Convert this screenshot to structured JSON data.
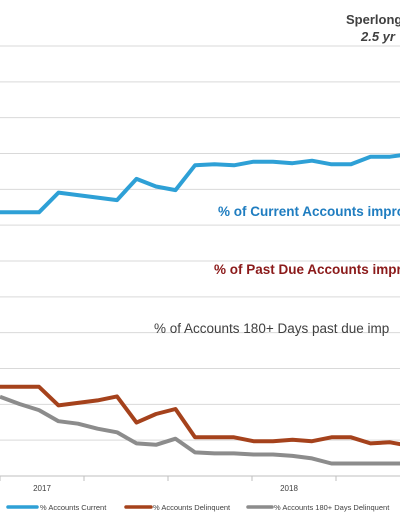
{
  "chart_data": {
    "type": "line",
    "title": "Sperlong",
    "subtitle": "2.5 yr",
    "ylim": [
      0,
      12
    ],
    "grid": true,
    "x_ticks": [
      "2017",
      "2018"
    ],
    "annotations": [
      {
        "text": "% of Current Accounts impro",
        "color": "#1F7DC0"
      },
      {
        "text": "% of Past Due Accounts impro",
        "color": "#8B1A1A"
      },
      {
        "text": "% of Accounts 180+ Days past due imp",
        "color": "#404040"
      }
    ],
    "series": [
      {
        "name": "% Accounts Current",
        "color": "#2EA0D6",
        "values": [
          7.36,
          7.36,
          7.36,
          7.91,
          7.84,
          7.77,
          7.7,
          8.29,
          8.08,
          7.98,
          8.67,
          8.7,
          8.67,
          8.77,
          8.77,
          8.73,
          8.8,
          8.7,
          8.7,
          8.91,
          8.91,
          8.98
        ]
      },
      {
        "name": "% Accounts Delinquent",
        "color": "#A5421C",
        "values": [
          2.49,
          2.49,
          2.49,
          1.97,
          2.04,
          2.11,
          2.22,
          1.49,
          1.73,
          1.87,
          1.08,
          1.08,
          1.08,
          0.97,
          0.97,
          1.01,
          0.97,
          1.08,
          1.08,
          0.91,
          0.94,
          0.84
        ]
      },
      {
        "name": "% Accounts 180+ Days Delinquent",
        "color": "#8C8C8C",
        "values": [
          2.21,
          2.01,
          1.84,
          1.53,
          1.46,
          1.32,
          1.22,
          0.91,
          0.87,
          1.04,
          0.66,
          0.63,
          0.63,
          0.6,
          0.6,
          0.56,
          0.49,
          0.35,
          0.35,
          0.35,
          0.35,
          0.35
        ]
      }
    ]
  }
}
